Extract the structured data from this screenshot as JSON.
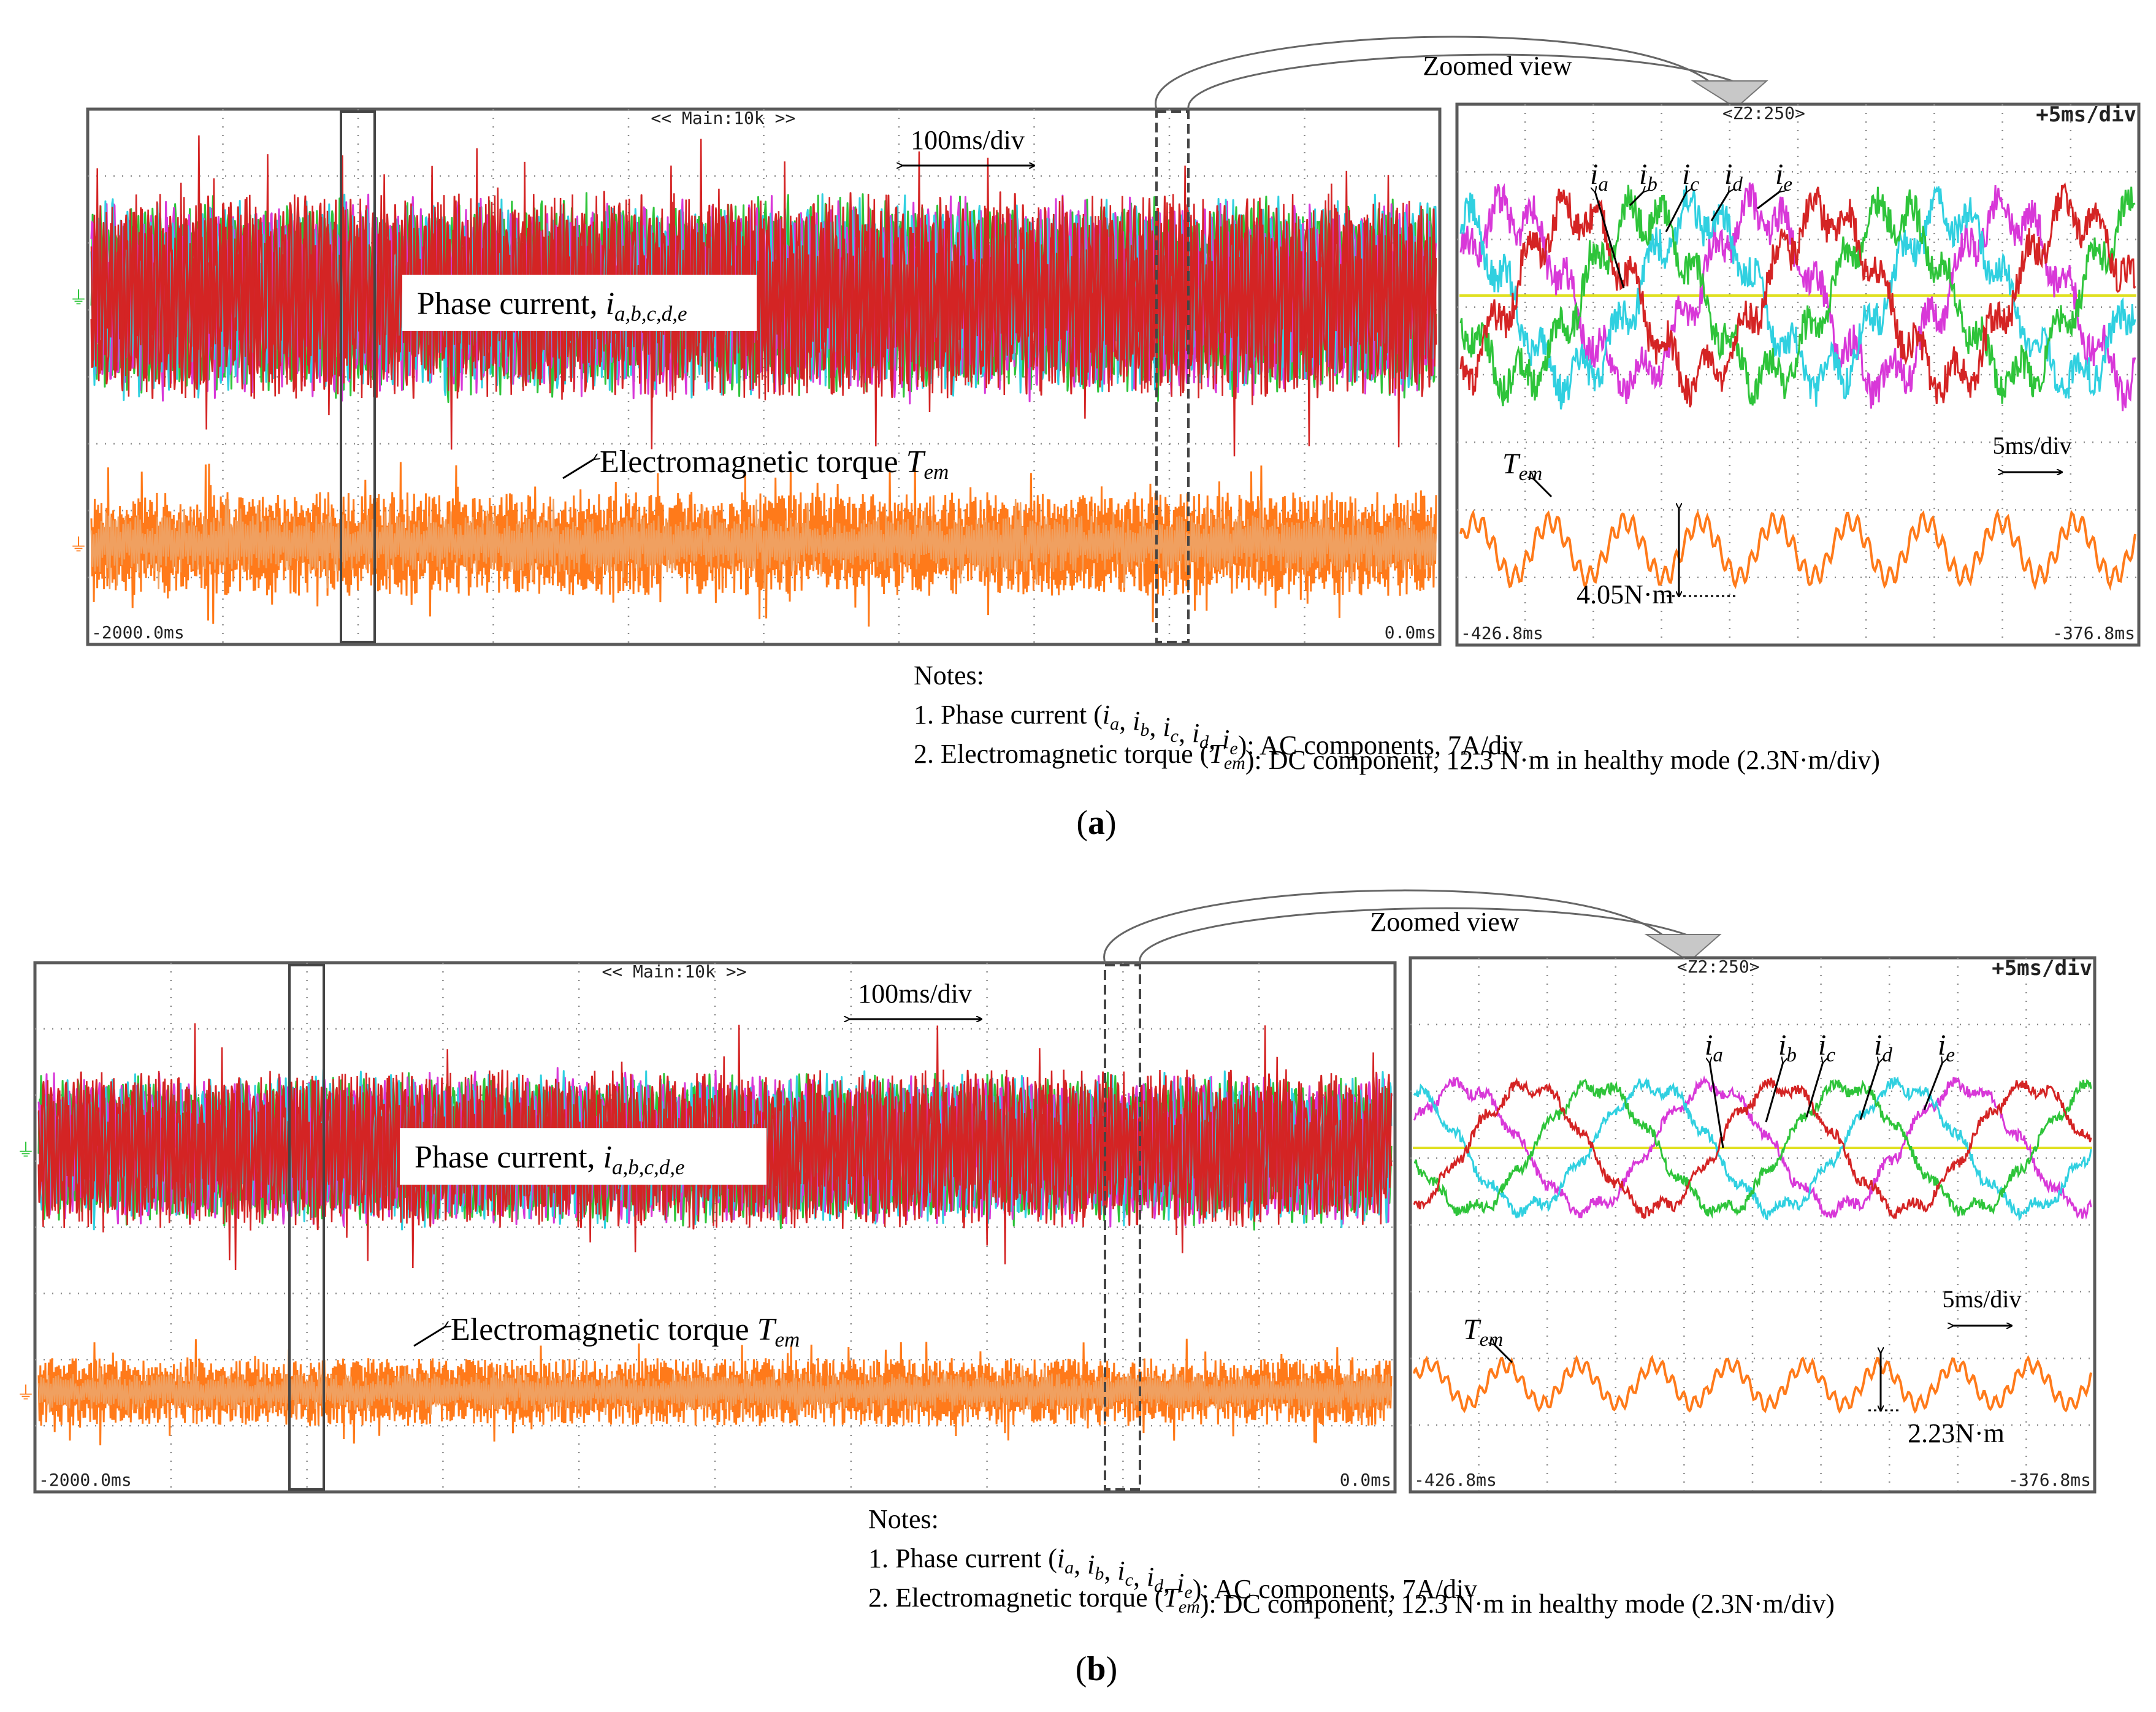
{
  "chart_data": [
    {
      "panel": "(a)",
      "type": "line",
      "main_window": {
        "header": "<< Main:10k >>",
        "time_range_ms": [
          -2000.0,
          0.0
        ],
        "time_start_label": "-2000.0ms",
        "time_end_label": "0.0ms",
        "scale_label": "100ms/div",
        "current_label": {
          "prefix": "Phase current, ",
          "symbol": "i",
          "subscript": "a,b,c,d,e"
        },
        "torque_label": {
          "prefix": "Electromagnetic torque ",
          "symbol": "T",
          "subscript": "em"
        }
      },
      "zoom_title": "Zoomed view",
      "zoom_window": {
        "header": "<Z2:250>",
        "timebase": "+5ms/div",
        "time_range_ms": [
          -426.8,
          -376.8
        ],
        "time_start_label": "-426.8ms",
        "time_end_label": "-376.8ms",
        "scale_label": "5ms/div",
        "phase_labels": [
          {
            "symbol": "i",
            "subscript": "a"
          },
          {
            "symbol": "i",
            "subscript": "b"
          },
          {
            "symbol": "i",
            "subscript": "c"
          },
          {
            "symbol": "i",
            "subscript": "d"
          },
          {
            "symbol": "i",
            "subscript": "e"
          }
        ],
        "torque_symbol": {
          "symbol": "T",
          "subscript": "em"
        },
        "ripple_label": "4.05N·m",
        "ripple_value_Nm": 4.05
      },
      "notes": {
        "title": "Notes:",
        "line1": {
          "a": "1. Phase current (",
          "b": "): AC components, 7A/div"
        },
        "line2": {
          "a": "2. Electromagnetic torque (",
          "b": "): DC component, 12.3 N·m in healthy mode (2.3N·m/div)"
        }
      },
      "series_colors": {
        "ia": "#d42424",
        "ib": "#2ec43a",
        "ic": "#d838d8",
        "id": "#30d0e0",
        "ie": "#d42424",
        "torque": "#ff7a1a",
        "reference": "#e0e020"
      },
      "current_scale": "7A/div",
      "torque_scale": "2.3N·m/div",
      "torque_dc_Nm": 12.3
    },
    {
      "panel": "(b)",
      "type": "line",
      "main_window": {
        "header": "<< Main:10k >>",
        "time_range_ms": [
          -2000.0,
          0.0
        ],
        "time_start_label": "-2000.0ms",
        "time_end_label": "0.0ms",
        "scale_label": "100ms/div",
        "current_label": {
          "prefix": "Phase current, ",
          "symbol": "i",
          "subscript": "a,b,c,d,e"
        },
        "torque_label": {
          "prefix": "Electromagnetic torque ",
          "symbol": "T",
          "subscript": "em"
        }
      },
      "zoom_title": "Zoomed view",
      "zoom_window": {
        "header": "<Z2:250>",
        "timebase": "+5ms/div",
        "time_range_ms": [
          -426.8,
          -376.8
        ],
        "time_start_label": "-426.8ms",
        "time_end_label": "-376.8ms",
        "scale_label": "5ms/div",
        "phase_labels": [
          {
            "symbol": "i",
            "subscript": "a"
          },
          {
            "symbol": "i",
            "subscript": "b"
          },
          {
            "symbol": "i",
            "subscript": "c"
          },
          {
            "symbol": "i",
            "subscript": "d"
          },
          {
            "symbol": "i",
            "subscript": "e"
          }
        ],
        "torque_symbol": {
          "symbol": "T",
          "subscript": "em"
        },
        "ripple_label": "2.23N·m",
        "ripple_value_Nm": 2.23
      },
      "notes": {
        "title": "Notes:",
        "line1": {
          "a": "1. Phase current (",
          "b": "): AC components, 7A/div"
        },
        "line2": {
          "a": "2. Electromagnetic torque (",
          "b": "): DC component, 12.3 N·m in healthy mode (2.3N·m/div)"
        }
      },
      "series_colors": {
        "ia": "#d42424",
        "ib": "#2ec43a",
        "ic": "#d838d8",
        "id": "#30d0e0",
        "ie": "#d42424",
        "torque": "#ff7a1a",
        "reference": "#e0e020"
      },
      "current_scale": "7A/div",
      "torque_scale": "2.3N·m/div",
      "torque_dc_Nm": 12.3
    }
  ],
  "captions": [
    "a",
    "b"
  ]
}
